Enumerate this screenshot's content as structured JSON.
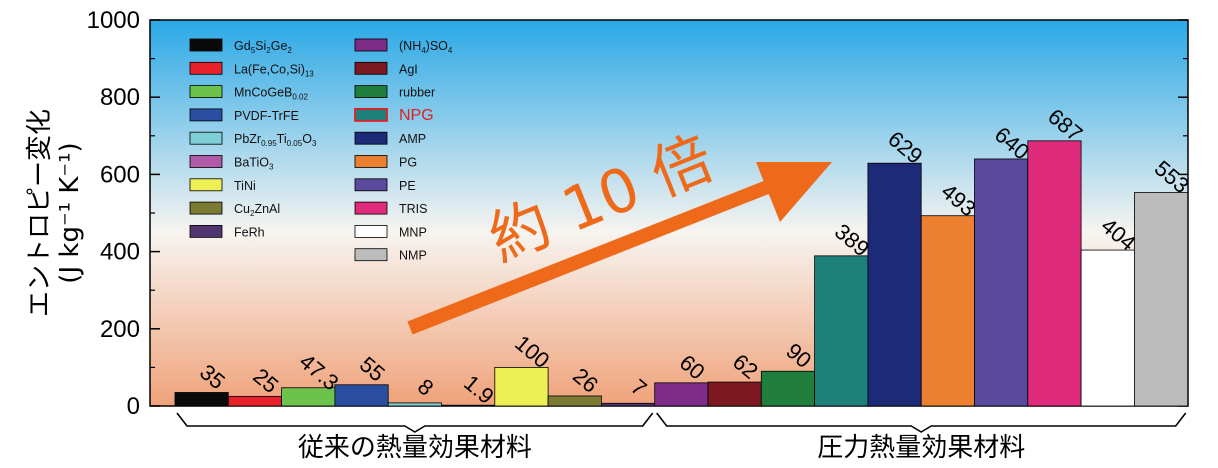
{
  "chart_data": {
    "type": "bar",
    "ylabel_line1": "エントロピー変化",
    "ylabel_line2": "(J kg⁻¹ K⁻¹)",
    "ylim": [
      0,
      1000
    ],
    "yticks": [
      0,
      200,
      400,
      600,
      800,
      1000
    ],
    "ytick_labels": [
      "0",
      "200",
      "400",
      "600",
      "800",
      "1000"
    ],
    "bars": [
      {
        "label": "Gd5Si2Ge2",
        "value": 35,
        "value_label": "35",
        "color": "#0a0a0a"
      },
      {
        "label": "La(Fe,Co,Si)13",
        "value": 25,
        "value_label": "25",
        "color": "#e6212a"
      },
      {
        "label": "MnCoGeB0.02",
        "value": 47.3,
        "value_label": "47.3",
        "color": "#6cc24a"
      },
      {
        "label": "PVDF-TrFE",
        "value": 55,
        "value_label": "55",
        "color": "#2a4fa0"
      },
      {
        "label": "PbZr0.95Ti0.05O3",
        "value": 8,
        "value_label": "8",
        "color": "#7fcfd6"
      },
      {
        "label": "BaTiO3",
        "value": 1.9,
        "value_label": "1.9",
        "color": "#b05aa8"
      },
      {
        "label": "TiNi",
        "value": 100,
        "value_label": "100",
        "color": "#eeee55"
      },
      {
        "label": "Cu2ZnAl",
        "value": 26,
        "value_label": "26",
        "color": "#7a7a32"
      },
      {
        "label": "FeRh",
        "value": 7,
        "value_label": "7",
        "color": "#4f3470"
      },
      {
        "label": "(NH4)SO4",
        "value": 60,
        "value_label": "60",
        "color": "#7d2c88"
      },
      {
        "label": "AgI",
        "value": 62,
        "value_label": "62",
        "color": "#7c1820"
      },
      {
        "label": "rubber",
        "value": 90,
        "value_label": "90",
        "color": "#1f7e3c"
      },
      {
        "label": "NPG",
        "value": 389,
        "value_label": "389",
        "color": "#1f7f7b"
      },
      {
        "label": "AMP",
        "value": 629,
        "value_label": "629",
        "color": "#1c2a78"
      },
      {
        "label": "PG",
        "value": 493,
        "value_label": "493",
        "color": "#ea8030"
      },
      {
        "label": "PE",
        "value": 640,
        "value_label": "640",
        "color": "#5a4a9e"
      },
      {
        "label": "TRIS",
        "value": 687,
        "value_label": "687",
        "color": "#e02a7c"
      },
      {
        "label": "MNP",
        "value": 404,
        "value_label": "404",
        "color": "#ffffff"
      },
      {
        "label": "NMP",
        "value": 553,
        "value_label": "553",
        "color": "#bcbcbc"
      }
    ],
    "legend_col1": [
      "Gd5Si2Ge2",
      "La(Fe,Co,Si)13",
      "MnCoGeB0.02",
      "PVDF-TrFE",
      "PbZr0.95Ti0.05O3",
      "BaTiO3",
      "TiNi",
      "Cu2ZnAl",
      "FeRh"
    ],
    "legend_col2": [
      "(NH4)SO4",
      "AgI",
      "rubber",
      "NPG",
      "AMP",
      "PG",
      "PE",
      "TRIS",
      "MNP",
      "NMP"
    ],
    "legend_highlight": "NPG",
    "legend_highlight_color": "#e02020",
    "arrow_label": "約 10 倍",
    "arrow_color": "#ee6a1a",
    "groups": [
      {
        "label": "従来の熱量効果材料",
        "from": 0,
        "to": 8
      },
      {
        "label": "圧力熱量効果材料",
        "from": 9,
        "to": 18
      }
    ],
    "background_gradient": [
      "#2aa8e6",
      "#f7f4f0",
      "#f0a27a"
    ],
    "grid": false,
    "legend_position": "top-left"
  }
}
